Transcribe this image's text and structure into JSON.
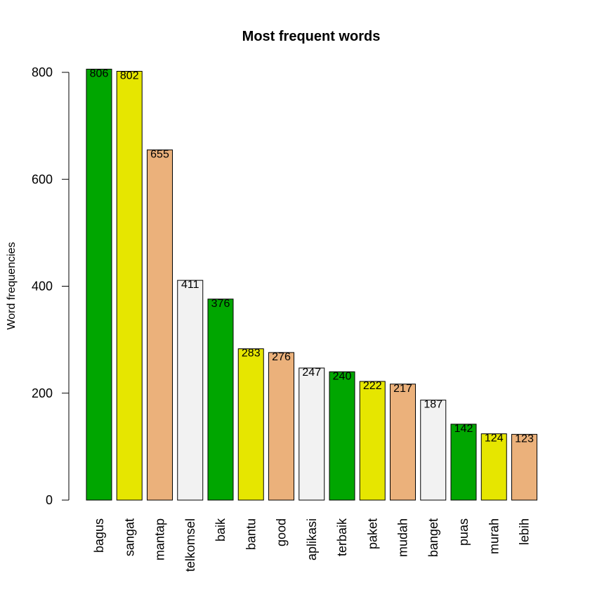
{
  "chart_data": {
    "type": "bar",
    "title": "Most frequent words",
    "xlabel": "",
    "ylabel": "Word frequencies",
    "ylim": [
      0,
      800
    ],
    "yticks": [
      "0",
      "200",
      "400",
      "600",
      "800"
    ],
    "grid": false,
    "categories": [
      "bagus",
      "sangat",
      "mantap",
      "telkomsel",
      "baik",
      "bantu",
      "good",
      "aplikasi",
      "terbaik",
      "paket",
      "mudah",
      "banget",
      "puas",
      "murah",
      "lebih"
    ],
    "values": [
      806,
      802,
      655,
      411,
      376,
      283,
      276,
      247,
      240,
      222,
      217,
      187,
      142,
      124,
      123
    ],
    "value_labels": [
      "806",
      "802",
      "655",
      "411",
      "376",
      "283",
      "276",
      "247",
      "240",
      "222",
      "217",
      "187",
      "142",
      "124",
      "123"
    ],
    "bar_colors": [
      "#00A600",
      "#E6E600",
      "#EBB17B",
      "#F2F2F2",
      "#00A600",
      "#E6E600",
      "#EBB17B",
      "#F2F2F2",
      "#00A600",
      "#E6E600",
      "#EBB17B",
      "#F2F2F2",
      "#00A600",
      "#E6E600",
      "#EBB17B"
    ]
  }
}
